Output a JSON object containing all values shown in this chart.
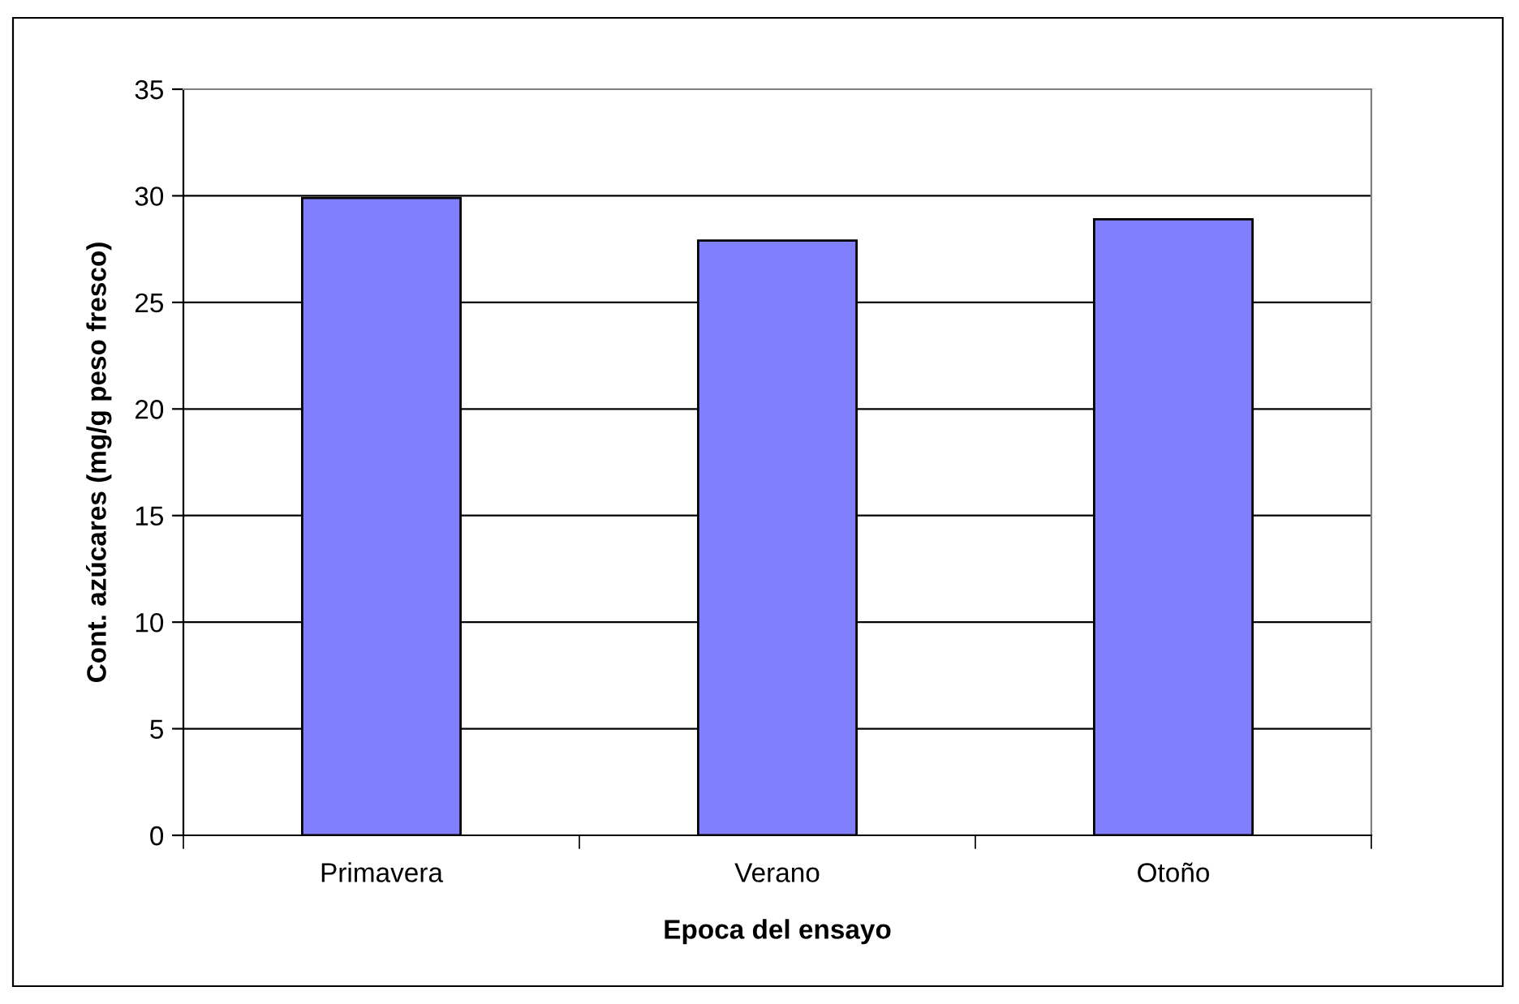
{
  "chart_data": {
    "type": "bar",
    "xlabel": "Epoca del ensayo",
    "ylabel": "Cont. azúcares (mg/g peso fresco)",
    "categories": [
      "Primavera",
      "Verano",
      "Otoño"
    ],
    "values": [
      29.9,
      27.9,
      28.9
    ],
    "color": "#8080ff",
    "ylim": [
      0,
      35
    ],
    "yticks": [
      0,
      5,
      10,
      15,
      20,
      25,
      30,
      35
    ],
    "grid": "y",
    "legend": false
  }
}
